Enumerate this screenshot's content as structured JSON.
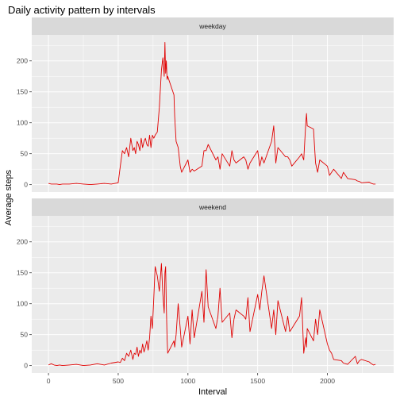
{
  "chart_data": {
    "type": "line",
    "title": "Daily activity pattern by intervals",
    "xlabel": "Interval",
    "ylabel": "Average steps",
    "xlim": [
      -120,
      2475
    ],
    "ylim": [
      -12,
      242
    ],
    "x_ticks": [
      0,
      500,
      1000,
      1500,
      2000
    ],
    "y_ticks": [
      0,
      50,
      100,
      150,
      200
    ],
    "grid": true,
    "line_color": "#e00000",
    "panel_background": "#ebebeb",
    "strip_background": "#d9d9d9",
    "facets": [
      {
        "label": "weekday",
        "x": [
          0,
          20,
          40,
          60,
          80,
          100,
          150,
          200,
          250,
          300,
          350,
          400,
          450,
          500,
          515,
          530,
          545,
          560,
          575,
          590,
          605,
          615,
          625,
          635,
          645,
          655,
          665,
          675,
          685,
          695,
          705,
          715,
          725,
          735,
          745,
          755,
          765,
          780,
          795,
          810,
          820,
          830,
          835,
          840,
          845,
          850,
          855,
          900,
          905,
          915,
          930,
          945,
          955,
          1000,
          1015,
          1030,
          1045,
          1100,
          1115,
          1130,
          1145,
          1200,
          1215,
          1230,
          1245,
          1300,
          1315,
          1330,
          1345,
          1400,
          1415,
          1430,
          1445,
          1500,
          1515,
          1530,
          1545,
          1600,
          1615,
          1630,
          1645,
          1700,
          1715,
          1730,
          1745,
          1800,
          1815,
          1830,
          1845,
          1850,
          1855,
          1900,
          1915,
          1930,
          1945,
          2000,
          2015,
          2030,
          2045,
          2100,
          2115,
          2130,
          2145,
          2200,
          2215,
          2230,
          2245,
          2300,
          2315,
          2330,
          2345
        ],
        "y": [
          2,
          1,
          1,
          1,
          0,
          1,
          1,
          2,
          1,
          0,
          1,
          2,
          1,
          3,
          30,
          55,
          50,
          60,
          45,
          75,
          55,
          60,
          50,
          70,
          65,
          55,
          75,
          60,
          70,
          75,
          65,
          62,
          80,
          60,
          80,
          75,
          80,
          85,
          125,
          185,
          205,
          175,
          230,
          180,
          200,
          170,
          175,
          145,
          110,
          70,
          60,
          30,
          20,
          40,
          20,
          25,
          22,
          30,
          55,
          55,
          65,
          40,
          45,
          25,
          50,
          30,
          55,
          40,
          35,
          45,
          40,
          25,
          35,
          55,
          30,
          45,
          35,
          70,
          95,
          35,
          60,
          45,
          45,
          40,
          30,
          45,
          50,
          40,
          100,
          115,
          95,
          90,
          35,
          20,
          40,
          30,
          15,
          20,
          25,
          10,
          20,
          15,
          10,
          8,
          6,
          5,
          3,
          4,
          2,
          1,
          1
        ]
      },
      {
        "label": "weekend",
        "x": [
          0,
          20,
          40,
          60,
          80,
          100,
          150,
          200,
          250,
          300,
          350,
          400,
          450,
          500,
          515,
          530,
          545,
          560,
          575,
          590,
          605,
          615,
          625,
          635,
          645,
          655,
          665,
          675,
          685,
          695,
          705,
          715,
          725,
          735,
          745,
          755,
          765,
          780,
          795,
          810,
          820,
          830,
          835,
          840,
          845,
          850,
          855,
          900,
          905,
          915,
          930,
          945,
          955,
          1000,
          1015,
          1030,
          1045,
          1100,
          1115,
          1130,
          1145,
          1200,
          1215,
          1230,
          1245,
          1300,
          1315,
          1330,
          1345,
          1400,
          1415,
          1430,
          1445,
          1500,
          1515,
          1530,
          1545,
          1600,
          1615,
          1630,
          1645,
          1700,
          1715,
          1730,
          1745,
          1800,
          1815,
          1830,
          1845,
          1850,
          1855,
          1900,
          1915,
          1930,
          1945,
          2000,
          2015,
          2030,
          2045,
          2100,
          2115,
          2130,
          2145,
          2200,
          2215,
          2230,
          2245,
          2300,
          2315,
          2330,
          2345
        ],
        "y": [
          1,
          3,
          1,
          0,
          1,
          0,
          1,
          2,
          0,
          1,
          3,
          1,
          4,
          6,
          5,
          12,
          8,
          20,
          15,
          25,
          10,
          20,
          18,
          30,
          15,
          25,
          20,
          35,
          22,
          30,
          40,
          25,
          45,
          80,
          60,
          110,
          160,
          145,
          120,
          165,
          115,
          85,
          150,
          160,
          95,
          45,
          20,
          40,
          30,
          50,
          100,
          60,
          30,
          80,
          35,
          90,
          45,
          120,
          70,
          155,
          95,
          60,
          80,
          125,
          70,
          85,
          45,
          75,
          90,
          80,
          75,
          110,
          55,
          115,
          90,
          120,
          145,
          60,
          90,
          50,
          105,
          55,
          80,
          55,
          60,
          80,
          110,
          20,
          45,
          30,
          60,
          40,
          75,
          50,
          90,
          35,
          25,
          20,
          10,
          8,
          4,
          3,
          2,
          15,
          3,
          8,
          10,
          6,
          3,
          1,
          2
        ]
      }
    ]
  }
}
